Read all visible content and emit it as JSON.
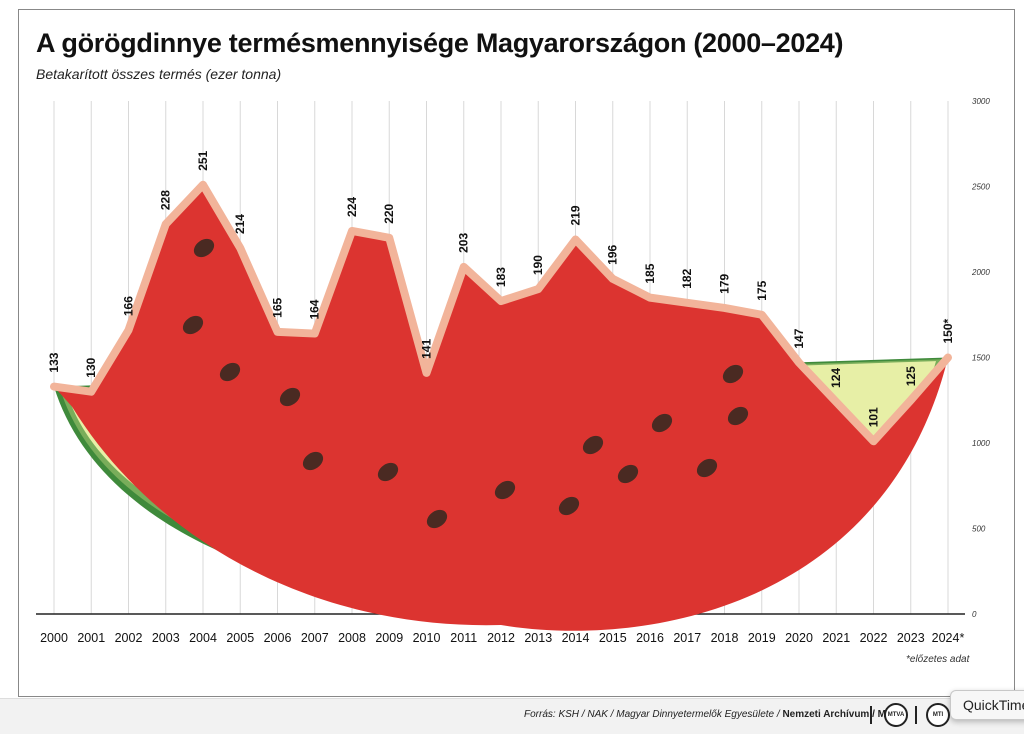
{
  "title": "A görögdinnye termésmennyisége Magyarországon (2000–2024)",
  "subtitle": "Betakarított összes termés (ezer tonna)",
  "footnote": "*előzetes adat",
  "source_prefix": "Forrás: KSH / NAK / Magyar Dinnyetermelők Egyesülete / ",
  "source_bold": "Nemzeti Archívum / MTI",
  "footer_logos": [
    "MTVA",
    "MTI"
  ],
  "tooltip": "QuickTime",
  "colors": {
    "flesh": "#dc3430",
    "outline": "#f2b49a",
    "rind_dark": "#3f8a3b",
    "rind_mid": "#79ad5a",
    "rind_light": "#e7efa6",
    "seed": "#4a2a22",
    "grid": "#d8d8d8"
  },
  "chart_data": {
    "type": "area",
    "title": "A görögdinnye termésmennyisége Magyarországon (2000–2024)",
    "ylabel": "Betakarított összes termés (ezer tonna)",
    "x": [
      "2000",
      "2001",
      "2002",
      "2003",
      "2004",
      "2005",
      "2006",
      "2007",
      "2008",
      "2009",
      "2010",
      "2011",
      "2012",
      "2013",
      "2014",
      "2015",
      "2016",
      "2017",
      "2018",
      "2019",
      "2020",
      "2021",
      "2022",
      "2023",
      "2024*"
    ],
    "values": [
      133,
      130,
      166,
      228,
      251,
      214,
      165,
      164,
      224,
      220,
      141,
      203,
      183,
      190,
      219,
      196,
      185,
      182,
      179,
      175,
      147,
      124,
      101,
      125,
      150
    ],
    "value_labels": [
      "133",
      "130",
      "166",
      "228",
      "251",
      "214",
      "165",
      "164",
      "224",
      "220",
      "141",
      "203",
      "183",
      "190",
      "219",
      "196",
      "185",
      "182",
      "179",
      "175",
      "147",
      "124",
      "101",
      "125",
      "150*"
    ],
    "right_axis_ticks": [
      "3000",
      "2500",
      "2000",
      "1500",
      "1000",
      "500",
      "0"
    ],
    "ylim": [
      0,
      300
    ],
    "grid": true,
    "decoration": "watermelon slice"
  }
}
